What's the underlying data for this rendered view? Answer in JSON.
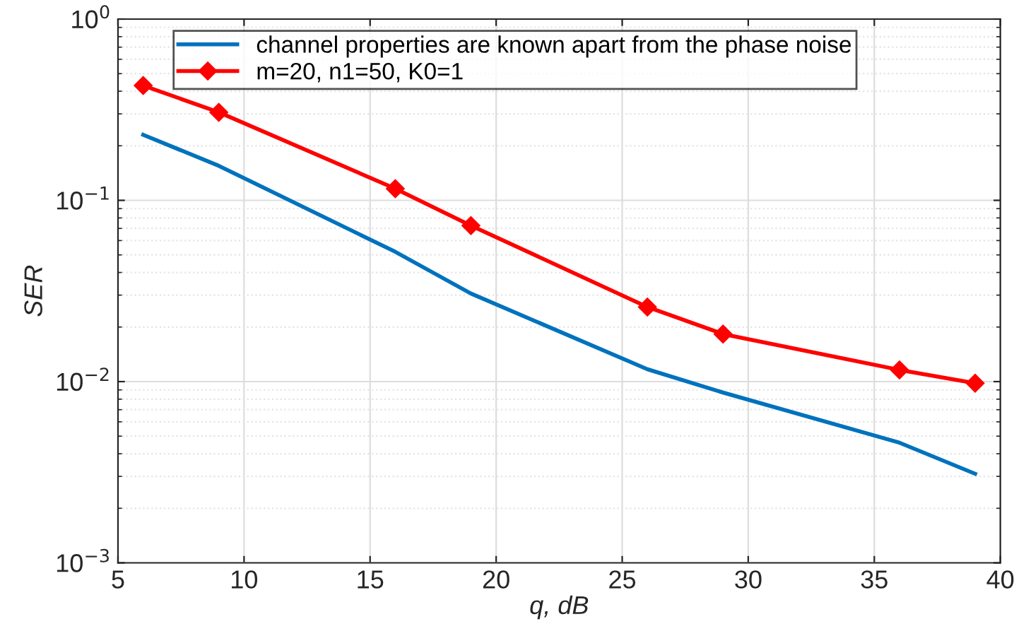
{
  "chart_data": {
    "type": "line",
    "xlabel": "q, dB",
    "ylabel": "SER",
    "x": [
      6,
      9,
      16,
      19,
      26,
      29,
      36,
      39
    ],
    "series": [
      {
        "name": "channel properties are known apart from the phase noise",
        "color": "#0072bd",
        "marker": "none",
        "values": [
          0.23,
          0.155,
          0.052,
          0.0306,
          0.0117,
          0.0087,
          0.0046,
          0.0031
        ]
      },
      {
        "name": "m=20, n1=50, K0=1",
        "color": "#ff0000",
        "marker": "diamond",
        "values": [
          0.43,
          0.306,
          0.116,
          0.0726,
          0.0258,
          0.0183,
          0.0116,
          0.0098
        ]
      }
    ],
    "log": "y",
    "xlim": [
      5,
      40
    ],
    "xticks": [
      5,
      10,
      15,
      20,
      25,
      30,
      35,
      40
    ],
    "ylim": [
      0.001,
      1
    ],
    "yticks": [
      {
        "value": 0.001,
        "label": "10$^{−3}$"
      },
      {
        "value": 0.01,
        "label": "10$^{−2}$"
      },
      {
        "value": 0.1,
        "label": "10$^{−1}$"
      },
      {
        "value": 1,
        "label": "10$^{0}$"
      }
    ],
    "grid": true,
    "legend": "top"
  }
}
